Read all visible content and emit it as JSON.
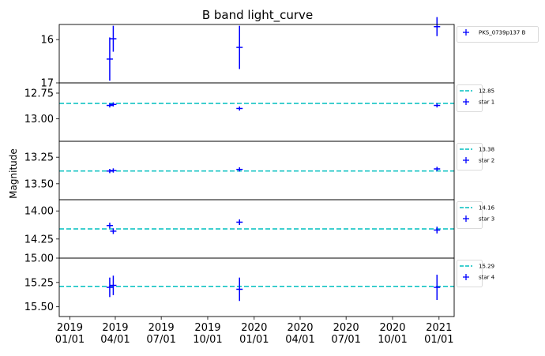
{
  "chart_data": {
    "type": "scatter",
    "title": "B band light_curve",
    "ylabel": "Magnitude",
    "xlabel": "",
    "x_ticks": [
      "2019\n01/01",
      "2019\n04/01",
      "2019\n07/01",
      "2019\n10/01",
      "2020\n01/01",
      "2020\n04/01",
      "2020\n07/01",
      "2020\n10/01",
      "2021\n01/01"
    ],
    "x_tick_dates": [
      "2019-01-01",
      "2019-04-01",
      "2019-07-01",
      "2019-10-01",
      "2020-01-01",
      "2020-04-01",
      "2020-07-01",
      "2020-10-01",
      "2021-01-01"
    ],
    "xlim": [
      "2018-12-11",
      "2021-01-31"
    ],
    "y_inverted": true,
    "marker_color": "#0000ff",
    "reference_line_color": "#00bfbf",
    "panels": [
      {
        "ylim": [
          17.0,
          15.65
        ],
        "yticks": [
          "16",
          "17"
        ],
        "ytick_values": [
          16,
          17
        ],
        "legend": [
          {
            "kind": "errorbar",
            "label": "PKS_0739p137 B"
          }
        ],
        "series": [
          {
            "name": "PKS_0739p137 B",
            "points": [
              {
                "x": "2019-03-21",
                "y": 16.45,
                "err": 0.5
              },
              {
                "x": "2019-03-28",
                "y": 15.98,
                "err": 0.3
              },
              {
                "x": "2019-12-03",
                "y": 16.18,
                "err": 0.5
              },
              {
                "x": "2020-12-28",
                "y": 15.7,
                "err": 0.22
              }
            ]
          }
        ]
      },
      {
        "ylim": [
          13.22,
          12.65
        ],
        "yticks": [
          "12.75",
          "13.00"
        ],
        "ytick_values": [
          12.75,
          13.0
        ],
        "reference": 12.85,
        "legend": [
          {
            "kind": "line",
            "label": "12.85"
          },
          {
            "kind": "errorbar",
            "label": "star 1"
          }
        ],
        "series": [
          {
            "name": "star 1",
            "points": [
              {
                "x": "2019-03-21",
                "y": 12.87,
                "err": 0.02
              },
              {
                "x": "2019-03-28",
                "y": 12.86,
                "err": 0.02
              },
              {
                "x": "2019-12-03",
                "y": 12.9,
                "err": 0.02
              },
              {
                "x": "2020-12-28",
                "y": 12.87,
                "err": 0.02
              }
            ]
          }
        ]
      },
      {
        "ylim": [
          13.65,
          13.1
        ],
        "yticks": [
          "13.25",
          "13.50"
        ],
        "ytick_values": [
          13.25,
          13.5
        ],
        "reference": 13.38,
        "legend": [
          {
            "kind": "line",
            "label": "13.38"
          },
          {
            "kind": "errorbar",
            "label": "star 2"
          }
        ],
        "series": [
          {
            "name": "star 2",
            "points": [
              {
                "x": "2019-03-21",
                "y": 13.38,
                "err": 0.02
              },
              {
                "x": "2019-03-28",
                "y": 13.375,
                "err": 0.02
              },
              {
                "x": "2019-12-03",
                "y": 13.365,
                "err": 0.02
              },
              {
                "x": "2020-12-28",
                "y": 13.36,
                "err": 0.02
              }
            ]
          }
        ]
      },
      {
        "ylim": [
          14.42,
          13.9
        ],
        "yticks": [
          "14.00",
          "14.25"
        ],
        "ytick_values": [
          14.0,
          14.25
        ],
        "reference": 14.16,
        "legend": [
          {
            "kind": "line",
            "label": "14.16"
          },
          {
            "kind": "errorbar",
            "label": "star 3"
          }
        ],
        "series": [
          {
            "name": "star 3",
            "points": [
              {
                "x": "2019-03-21",
                "y": 14.13,
                "err": 0.025
              },
              {
                "x": "2019-03-28",
                "y": 14.18,
                "err": 0.025
              },
              {
                "x": "2019-12-03",
                "y": 14.1,
                "err": 0.025
              },
              {
                "x": "2020-12-28",
                "y": 14.17,
                "err": 0.03
              }
            ]
          }
        ]
      },
      {
        "ylim": [
          15.6,
          15.0
        ],
        "yticks": [
          "15.00",
          "15.25",
          "15.50"
        ],
        "ytick_values": [
          15.0,
          15.25,
          15.5
        ],
        "reference": 15.29,
        "legend": [
          {
            "kind": "line",
            "label": "15.29"
          },
          {
            "kind": "errorbar",
            "label": "star 4"
          }
        ],
        "series": [
          {
            "name": "star 4",
            "points": [
              {
                "x": "2019-03-21",
                "y": 15.3,
                "err": 0.1
              },
              {
                "x": "2019-03-28",
                "y": 15.28,
                "err": 0.1
              },
              {
                "x": "2019-12-03",
                "y": 15.32,
                "err": 0.12
              },
              {
                "x": "2020-12-28",
                "y": 15.3,
                "err": 0.13
              }
            ]
          }
        ]
      }
    ]
  }
}
